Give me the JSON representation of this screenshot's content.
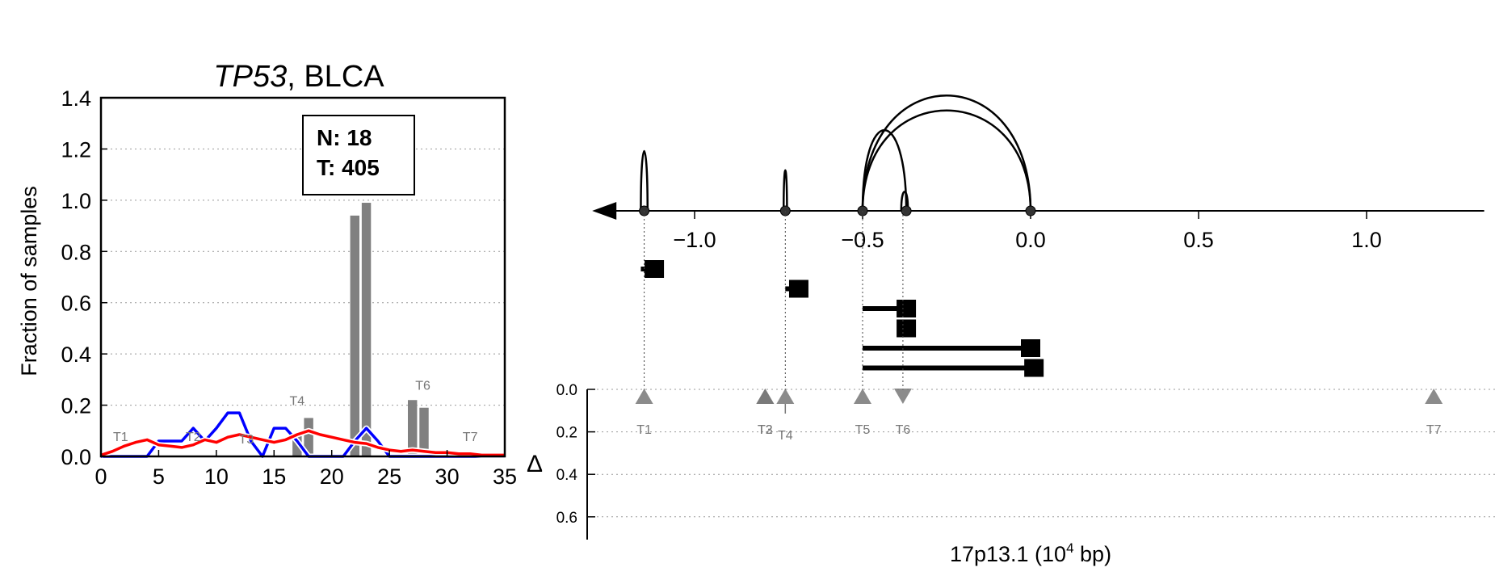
{
  "chart_data": [
    {
      "type": "bar",
      "title_gene": "TP53",
      "title_rest": ", BLCA",
      "xlabel": "",
      "ylabel": "Fraction of samples",
      "xlim": [
        0,
        35
      ],
      "ylim": [
        0,
        1.4
      ],
      "xticks": [
        0,
        5,
        10,
        15,
        20,
        25,
        30,
        35
      ],
      "yticks": [
        0.0,
        0.2,
        0.4,
        0.6,
        0.8,
        1.0,
        1.2,
        1.4
      ],
      "grid": "horizontal dotted",
      "legend_box": {
        "n_label": "N: 18",
        "t_label": "T: 405"
      },
      "bars": [
        {
          "x": 17,
          "value": 0.08
        },
        {
          "x": 18,
          "value": 0.15
        },
        {
          "x": 22,
          "value": 0.94
        },
        {
          "x": 23,
          "value": 0.99
        },
        {
          "x": 27,
          "value": 0.22
        },
        {
          "x": 28,
          "value": 0.19
        }
      ],
      "series": [
        {
          "color": "#0000ff",
          "points": [
            [
              0,
              0
            ],
            [
              1,
              0
            ],
            [
              2,
              0
            ],
            [
              3,
              0
            ],
            [
              4,
              0
            ],
            [
              5,
              0.06
            ],
            [
              6,
              0.06
            ],
            [
              7,
              0.06
            ],
            [
              8,
              0.11
            ],
            [
              9,
              0.06
            ],
            [
              10,
              0.11
            ],
            [
              11,
              0.17
            ],
            [
              12,
              0.17
            ],
            [
              13,
              0.06
            ],
            [
              14,
              0
            ],
            [
              15,
              0.11
            ],
            [
              16,
              0.11
            ],
            [
              17,
              0.06
            ],
            [
              18,
              0
            ],
            [
              19,
              0
            ],
            [
              20,
              0
            ],
            [
              21,
              0
            ],
            [
              22,
              0.06
            ],
            [
              23,
              0.11
            ],
            [
              24,
              0.06
            ],
            [
              25,
              0
            ],
            [
              26,
              0
            ],
            [
              27,
              0
            ],
            [
              28,
              0
            ],
            [
              29,
              0
            ],
            [
              30,
              0
            ],
            [
              31,
              0
            ],
            [
              32,
              0
            ],
            [
              33,
              0
            ],
            [
              34,
              0
            ],
            [
              35,
              0
            ]
          ]
        },
        {
          "color": "#ff0000",
          "points": [
            [
              0,
              0.005
            ],
            [
              1,
              0.02
            ],
            [
              2,
              0.04
            ],
            [
              3,
              0.055
            ],
            [
              4,
              0.065
            ],
            [
              5,
              0.045
            ],
            [
              6,
              0.04
            ],
            [
              7,
              0.035
            ],
            [
              8,
              0.045
            ],
            [
              9,
              0.065
            ],
            [
              10,
              0.055
            ],
            [
              11,
              0.075
            ],
            [
              12,
              0.085
            ],
            [
              13,
              0.075
            ],
            [
              14,
              0.065
            ],
            [
              15,
              0.055
            ],
            [
              16,
              0.065
            ],
            [
              17,
              0.085
            ],
            [
              18,
              0.1
            ],
            [
              19,
              0.085
            ],
            [
              20,
              0.075
            ],
            [
              21,
              0.065
            ],
            [
              22,
              0.055
            ],
            [
              23,
              0.05
            ],
            [
              24,
              0.035
            ],
            [
              25,
              0.025
            ],
            [
              26,
              0.02
            ],
            [
              27,
              0.025
            ],
            [
              28,
              0.02
            ],
            [
              29,
              0.015
            ],
            [
              30,
              0.015
            ],
            [
              31,
              0.01
            ],
            [
              32,
              0.01
            ],
            [
              33,
              0.005
            ],
            [
              34,
              0.005
            ],
            [
              35,
              0.005
            ]
          ]
        }
      ],
      "annotations": [
        {
          "text": "T1",
          "x": 1.7,
          "y": 0.06
        },
        {
          "text": "T2",
          "x": 8.0,
          "y": 0.06
        },
        {
          "text": "T3",
          "x": 12.6,
          "y": 0.05
        },
        {
          "text": "T4",
          "x": 17.0,
          "y": 0.2
        },
        {
          "text": "T6",
          "x": 27.9,
          "y": 0.26
        },
        {
          "text": "T7",
          "x": 32.0,
          "y": 0.06
        }
      ]
    },
    {
      "type": "genomic-arcs",
      "xlabel_main": "17p13.1 (10",
      "xlabel_exp": "4",
      "xlabel_tail": " bp)",
      "xlim": [
        -1.3,
        1.35
      ],
      "xticks": [
        -1.0,
        -0.5,
        0.0,
        0.5,
        1.0
      ],
      "xtick_labels": [
        "−1.0",
        "−0.5",
        "0.0",
        "0.5",
        "1.0"
      ],
      "arc_nodes": [
        -1.15,
        -0.73,
        -0.5,
        -0.37,
        0.0
      ],
      "arcs": [
        {
          "x1": -1.16,
          "x2": -1.14,
          "height": 1.0
        },
        {
          "x1": -0.735,
          "x2": -0.725,
          "height": 0.68
        },
        {
          "x1": -0.5,
          "x2": -0.37,
          "height": 1.35
        },
        {
          "x1": -0.5,
          "x2": 0.0,
          "height": 1.68
        },
        {
          "x1": -0.5,
          "x2": 0.0,
          "height": 1.93
        },
        {
          "x1": -0.385,
          "x2": -0.365,
          "height": 0.32
        }
      ],
      "segments": [
        {
          "start": -1.16,
          "end": -1.12,
          "row": 0
        },
        {
          "start": -0.73,
          "end": -0.69,
          "row": 1
        },
        {
          "start": -0.5,
          "end": -0.37,
          "row": 2
        },
        {
          "start": -0.38,
          "end": -0.37,
          "row": 3
        },
        {
          "start": -0.5,
          "end": 0.0,
          "row": 4
        },
        {
          "start": -0.5,
          "end": 0.01,
          "row": 5
        }
      ],
      "delta_label": "Δ",
      "delta_ylim": [
        0.0,
        0.7
      ],
      "delta_yticks": [
        0.0,
        0.2,
        0.4,
        0.6
      ],
      "delta_ytick_labels": [
        "0.0",
        "0.2",
        "0.4",
        "0.6"
      ],
      "markers": [
        {
          "label": "T1",
          "x": -1.15,
          "dir": "up"
        },
        {
          "label": "T2",
          "x": -0.79,
          "dir": "up"
        },
        {
          "label": "T3",
          "x": -0.79,
          "dir": "up"
        },
        {
          "label": "T4",
          "x": -0.73,
          "dir": "up"
        },
        {
          "label": "T5",
          "x": -0.5,
          "dir": "up"
        },
        {
          "label": "T6",
          "x": -0.38,
          "dir": "down"
        },
        {
          "label": "T7",
          "x": 1.2,
          "dir": "up"
        }
      ],
      "colors": {
        "marker": "#777777",
        "line": "#000000"
      }
    }
  ]
}
